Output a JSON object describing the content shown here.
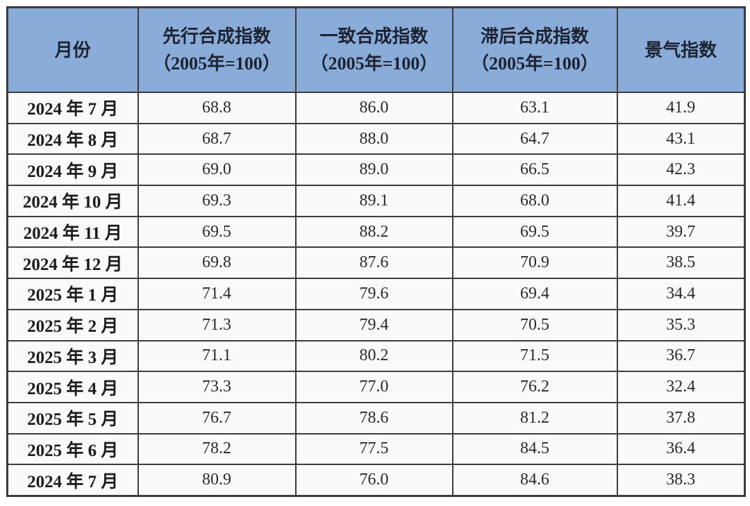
{
  "table": {
    "columns": [
      {
        "key": "month",
        "label": "月份",
        "sub": ""
      },
      {
        "key": "leading",
        "label": "先行合成指数",
        "sub": "（2005年=100）"
      },
      {
        "key": "coincident",
        "label": "一致合成指数",
        "sub": "（2005年=100）"
      },
      {
        "key": "lagging",
        "label": "滞后合成指数",
        "sub": "（2005年=100）"
      },
      {
        "key": "prosperity",
        "label": "景气指数",
        "sub": ""
      }
    ],
    "rows": [
      {
        "month": "2024 年 7 月",
        "leading": "68.8",
        "coincident": "86.0",
        "lagging": "63.1",
        "prosperity": "41.9"
      },
      {
        "month": "2024 年 8 月",
        "leading": "68.7",
        "coincident": "88.0",
        "lagging": "64.7",
        "prosperity": "43.1"
      },
      {
        "month": "2024 年 9 月",
        "leading": "69.0",
        "coincident": "89.0",
        "lagging": "66.5",
        "prosperity": "42.3"
      },
      {
        "month": "2024 年 10 月",
        "leading": "69.3",
        "coincident": "89.1",
        "lagging": "68.0",
        "prosperity": "41.4"
      },
      {
        "month": "2024 年 11 月",
        "leading": "69.5",
        "coincident": "88.2",
        "lagging": "69.5",
        "prosperity": "39.7"
      },
      {
        "month": "2024 年 12 月",
        "leading": "69.8",
        "coincident": "87.6",
        "lagging": "70.9",
        "prosperity": "38.5"
      },
      {
        "month": "2025 年 1 月",
        "leading": "71.4",
        "coincident": "79.6",
        "lagging": "69.4",
        "prosperity": "34.4"
      },
      {
        "month": "2025 年 2 月",
        "leading": "71.3",
        "coincident": "79.4",
        "lagging": "70.5",
        "prosperity": "35.3"
      },
      {
        "month": "2025 年 3 月",
        "leading": "71.1",
        "coincident": "80.2",
        "lagging": "71.5",
        "prosperity": "36.7"
      },
      {
        "month": "2025 年 4 月",
        "leading": "73.3",
        "coincident": "77.0",
        "lagging": "76.2",
        "prosperity": "32.4"
      },
      {
        "month": "2025 年 5 月",
        "leading": "76.7",
        "coincident": "78.6",
        "lagging": "81.2",
        "prosperity": "37.8"
      },
      {
        "month": "2025 年 6 月",
        "leading": "78.2",
        "coincident": "77.5",
        "lagging": "84.5",
        "prosperity": "36.4"
      },
      {
        "month": "2024 年 7 月",
        "leading": "80.9",
        "coincident": "76.0",
        "lagging": "84.6",
        "prosperity": "38.3"
      }
    ]
  },
  "chart_data": {
    "type": "table",
    "categories": [
      "2024年7月",
      "2024年8月",
      "2024年9月",
      "2024年10月",
      "2024年11月",
      "2024年12月",
      "2025年1月",
      "2025年2月",
      "2025年3月",
      "2025年4月",
      "2025年5月",
      "2025年6月",
      "2024年7月"
    ],
    "series": [
      {
        "name": "先行合成指数（2005年=100）",
        "values": [
          68.8,
          68.7,
          69.0,
          69.3,
          69.5,
          69.8,
          71.4,
          71.3,
          71.1,
          73.3,
          76.7,
          78.2,
          80.9
        ]
      },
      {
        "name": "一致合成指数（2005年=100）",
        "values": [
          86.0,
          88.0,
          89.0,
          89.1,
          88.2,
          87.6,
          79.6,
          79.4,
          80.2,
          77.0,
          78.6,
          77.5,
          76.0
        ]
      },
      {
        "name": "滞后合成指数（2005年=100）",
        "values": [
          63.1,
          64.7,
          66.5,
          68.0,
          69.5,
          70.9,
          69.4,
          70.5,
          71.5,
          76.2,
          81.2,
          84.5,
          84.6
        ]
      },
      {
        "name": "景气指数",
        "values": [
          41.9,
          43.1,
          42.3,
          41.4,
          39.7,
          38.5,
          34.4,
          35.3,
          36.7,
          32.4,
          37.8,
          36.4,
          38.3
        ]
      }
    ]
  },
  "colors": {
    "header_background": "#8aacd9",
    "header_text": "#1d2330",
    "cell_background": "#fafafa",
    "border": "#3c3c3c",
    "page_background": "#ffffff"
  }
}
